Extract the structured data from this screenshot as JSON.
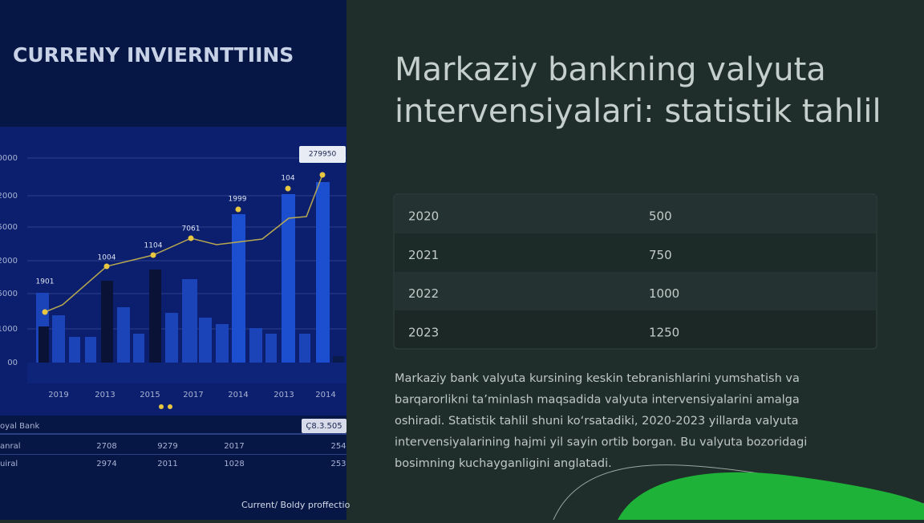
{
  "image": {
    "title": "CURRENY INVIERNTTIINS",
    "y_labels": [
      "0000",
      "2000",
      "5000",
      "2000",
      "5000",
      "1000",
      "00"
    ],
    "x_labels": [
      "2019",
      "2013",
      "2015",
      "2017",
      "2014",
      "2013",
      "2014"
    ],
    "point_labels": [
      "1901",
      "1004",
      "1104",
      "7061",
      "1999",
      "104",
      "279950"
    ],
    "table_header": [
      "oyal Bank",
      "Ç8.3.505"
    ],
    "table_rows": [
      [
        "anral",
        "2708",
        "9279",
        "2017",
        "254"
      ],
      [
        "uiral",
        "2974",
        "2011",
        "1028",
        "253"
      ]
    ],
    "footer": "Current/ Boldy proffectio"
  },
  "header": {
    "title_line1": "Markaziy bankning valyuta",
    "title_line2": "intervensiyalari: statistik tahlil"
  },
  "table": {
    "rows": [
      [
        "2020",
        "500"
      ],
      [
        "2021",
        "750"
      ],
      [
        "2022",
        "1000"
      ],
      [
        "2023",
        "1250"
      ]
    ]
  },
  "paragraph": [
    "Markaziy bank valyuta kursining keskin tebranishlarini yumshatish va",
    "barqarorlikni ta’minlash maqsadida valyuta intervensiyalarini amalga",
    "oshiradi. Statistik tahlil shuni ko‘rsatadiki, 2020-2023 yillarda valyuta",
    "intervensiyalarining hajmi yil sayin ortib borgan. Bu valyuta bozoridagi",
    "bosimning kuchayganligini anglatadi."
  ]
}
